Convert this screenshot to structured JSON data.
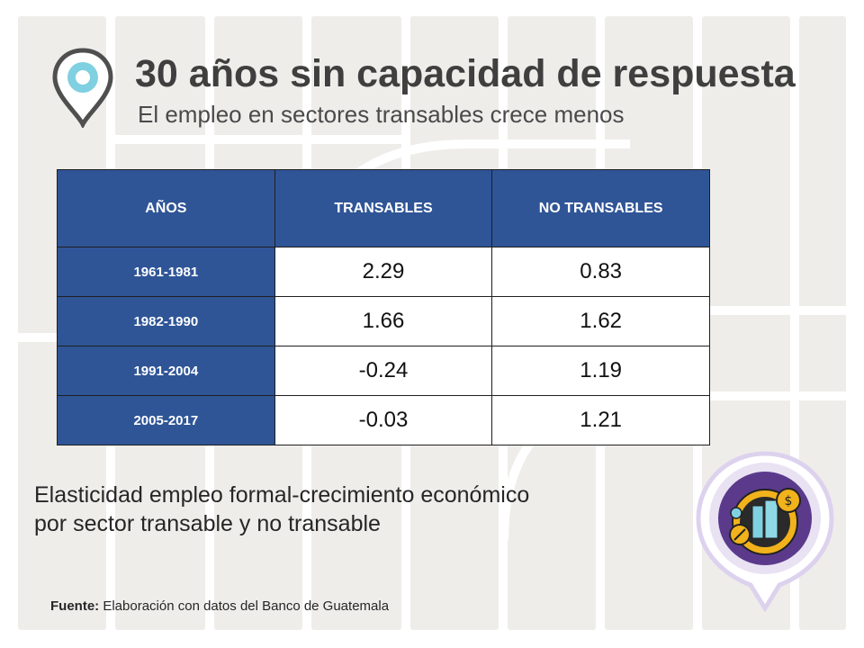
{
  "header": {
    "title": "30 años sin capacidad de respuesta",
    "subtitle": "El empleo en sectores transables crece menos"
  },
  "table": {
    "columns": [
      "AÑOS",
      "TRANSABLES",
      "NO TRANSABLES"
    ],
    "rows": [
      {
        "period": "1961-1981",
        "transables": "2.29",
        "no_transables": "0.83"
      },
      {
        "period": "1982-1990",
        "transables": "1.66",
        "no_transables": "1.62"
      },
      {
        "period": "1991-2004",
        "transables": "-0.24",
        "no_transables": "1.19"
      },
      {
        "period": "2005-2017",
        "transables": "-0.03",
        "no_transables": "1.21"
      }
    ]
  },
  "caption": {
    "line1": "Elasticidad empleo formal-crecimiento económico",
    "line2": "por sector transable y no transable"
  },
  "source": {
    "label": "Fuente:",
    "text": " Elaboración con datos del Banco de Guatemala"
  },
  "colors": {
    "header_blue": "#2f5597",
    "title_gray": "#3f3f3f",
    "pin_teal": "#7fd0e0",
    "badge_purple": "#5b3a8c",
    "badge_gold": "#f2b21c"
  },
  "icons": {
    "pin": "location-pin-icon",
    "badge": "economy-badge-icon"
  }
}
